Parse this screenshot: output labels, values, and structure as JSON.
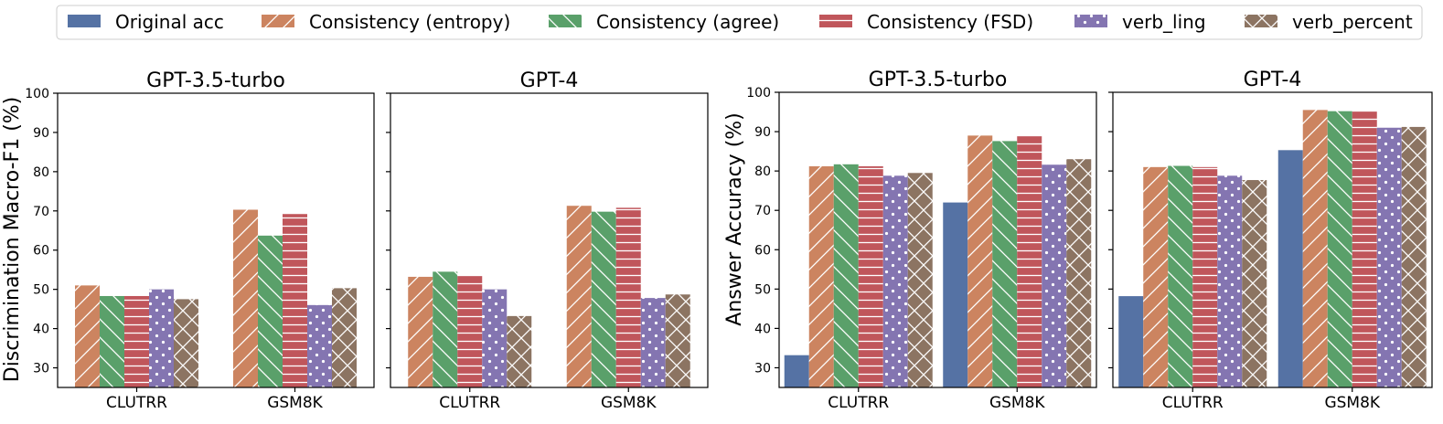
{
  "chart_data": {
    "type": "bar",
    "legend": {
      "position": "top-center",
      "entries": [
        {
          "name": "Original acc",
          "color": "#5572a4",
          "hatch": "none"
        },
        {
          "name": "Consistency (entropy)",
          "color": "#cc8460",
          "hatch": "diag-right"
        },
        {
          "name": "Consistency (agree)",
          "color": "#5aa06a",
          "hatch": "diag-left"
        },
        {
          "name": "Consistency (FSD)",
          "color": "#c0565b",
          "hatch": "horizontal"
        },
        {
          "name": "verb_ling",
          "color": "#8475b1",
          "hatch": "dots"
        },
        {
          "name": "verb_percent",
          "color": "#8c7462",
          "hatch": "cross"
        }
      ]
    },
    "groups": [
      {
        "ylabel": "Discrimination Macro-F1 (%)",
        "ylim": [
          25,
          100
        ],
        "yticks": [
          30,
          40,
          50,
          60,
          70,
          80,
          90,
          100
        ],
        "panels": [
          {
            "title": "GPT-3.5-turbo",
            "categories": [
              "CLUTRR",
              "GSM8K"
            ],
            "series": [
              {
                "name": "Consistency (entropy)",
                "values": [
                  51.0,
                  70.3
                ]
              },
              {
                "name": "Consistency (agree)",
                "values": [
                  48.3,
                  63.7
                ]
              },
              {
                "name": "Consistency (FSD)",
                "values": [
                  48.3,
                  69.2
                ]
              },
              {
                "name": "verb_ling",
                "values": [
                  50.0,
                  46.0
                ]
              },
              {
                "name": "verb_percent",
                "values": [
                  47.5,
                  50.3
                ]
              }
            ]
          },
          {
            "title": "GPT-4",
            "categories": [
              "CLUTRR",
              "GSM8K"
            ],
            "series": [
              {
                "name": "Consistency (entropy)",
                "values": [
                  53.2,
                  71.3
                ]
              },
              {
                "name": "Consistency (agree)",
                "values": [
                  54.5,
                  69.8
                ]
              },
              {
                "name": "Consistency (FSD)",
                "values": [
                  53.6,
                  70.8
                ]
              },
              {
                "name": "verb_ling",
                "values": [
                  50.0,
                  47.8
                ]
              },
              {
                "name": "verb_percent",
                "values": [
                  43.2,
                  48.7
                ]
              }
            ]
          }
        ]
      },
      {
        "ylabel": "Answer Accuracy (%)",
        "ylim": [
          25,
          100
        ],
        "yticks": [
          30,
          40,
          50,
          60,
          70,
          80,
          90,
          100
        ],
        "panels": [
          {
            "title": "GPT-3.5-turbo",
            "categories": [
              "CLUTRR",
              "GSM8K"
            ],
            "series": [
              {
                "name": "Original acc",
                "values": [
                  33.2,
                  72.0
                ]
              },
              {
                "name": "Consistency (entropy)",
                "values": [
                  81.2,
                  89.0
                ]
              },
              {
                "name": "Consistency (agree)",
                "values": [
                  81.7,
                  87.6
                ]
              },
              {
                "name": "Consistency (FSD)",
                "values": [
                  81.2,
                  89.0
                ]
              },
              {
                "name": "verb_ling",
                "values": [
                  78.8,
                  81.6
                ]
              },
              {
                "name": "verb_percent",
                "values": [
                  79.5,
                  83.0
                ]
              }
            ]
          },
          {
            "title": "GPT-4",
            "categories": [
              "CLUTRR",
              "GSM8K"
            ],
            "series": [
              {
                "name": "Original acc",
                "values": [
                  48.2,
                  85.3
                ]
              },
              {
                "name": "Consistency (entropy)",
                "values": [
                  81.0,
                  95.5
                ]
              },
              {
                "name": "Consistency (agree)",
                "values": [
                  81.3,
                  95.2
                ]
              },
              {
                "name": "Consistency (FSD)",
                "values": [
                  81.0,
                  95.2
                ]
              },
              {
                "name": "verb_ling",
                "values": [
                  78.8,
                  91.0
                ]
              },
              {
                "name": "verb_percent",
                "values": [
                  77.7,
                  91.2
                ]
              }
            ]
          }
        ]
      }
    ]
  }
}
